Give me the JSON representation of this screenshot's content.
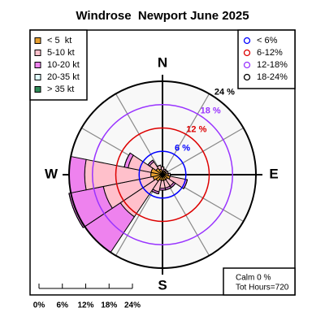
{
  "chart_data": {
    "type": "windrose",
    "title": "Windrose  Newport June 2025",
    "categories": [
      "N",
      null,
      null,
      null,
      "E",
      null,
      null,
      null,
      "S",
      null,
      null,
      null,
      "W",
      null,
      null,
      null
    ],
    "series": [
      {
        "name": "< 5  kt",
        "color": "#e8a030",
        "values": [
          1,
          1,
          1,
          1,
          1.5,
          2,
          1.5,
          1.5,
          1.5,
          1.5,
          2,
          2.5,
          3,
          3,
          2,
          1.5
        ]
      },
      {
        "name": "5-10 kt",
        "color": "#ffc0cb",
        "values": [
          1,
          0.5,
          0.5,
          0.5,
          0.5,
          4,
          2,
          2,
          2,
          3,
          11,
          13,
          17,
          6,
          2,
          1
        ]
      },
      {
        "name": "10-20 kt",
        "color": "#ee82ee",
        "values": [
          0,
          0,
          0,
          0,
          0,
          0.5,
          0.5,
          0.5,
          0.5,
          0.5,
          11,
          9,
          4,
          1,
          0.5,
          0
        ]
      },
      {
        "name": "20-35 kt",
        "color": "#e0ffff",
        "values": [
          0,
          0,
          0,
          0,
          0,
          0,
          0,
          0,
          0,
          0,
          0,
          0,
          0,
          0,
          0,
          0
        ]
      },
      {
        "name": "> 35 kt",
        "color": "#2e8b57",
        "values": [
          0,
          0,
          0,
          0,
          0,
          0,
          0,
          0,
          0,
          0,
          0,
          0,
          0,
          0,
          0,
          0
        ]
      }
    ],
    "rlim": [
      0,
      24
    ],
    "rticks": [
      {
        "value": 6,
        "label": "6 %"
      },
      {
        "value": 12,
        "label": "12 %"
      },
      {
        "value": 18,
        "label": "18 %"
      },
      {
        "value": 24,
        "label": "24 %"
      }
    ],
    "ring_colors": [
      "#0000ff",
      "#dd0000",
      "#9933ff",
      "#000000"
    ],
    "ring_legend": [
      "< 6%",
      "6-12%",
      "12-18%",
      "18-24%"
    ],
    "scale_ticks": [
      {
        "value": 0,
        "label": "0%"
      },
      {
        "value": 6,
        "label": "6%"
      },
      {
        "value": 12,
        "label": "12%"
      },
      {
        "value": 18,
        "label": "18%"
      },
      {
        "value": 24,
        "label": "24%"
      }
    ],
    "calm_label": "Calm 0 %",
    "total_label": "Tot Hours=720"
  }
}
